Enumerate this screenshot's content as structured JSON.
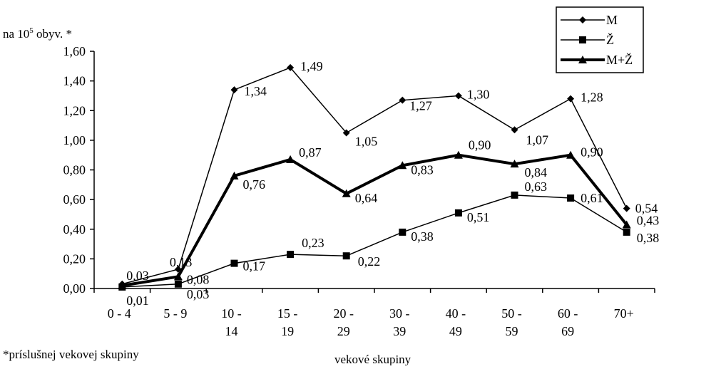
{
  "chart_data": {
    "type": "line",
    "title": "",
    "ylabel_prefix": "na 10",
    "ylabel_sup": "5",
    "ylabel_suffix": " obyv. *",
    "xlabel": "vekové skupiny",
    "footnote": "*príslušnej vekovej skupiny",
    "ylim": [
      0,
      1.6
    ],
    "ytick_step": 0.2,
    "yticks": [
      "0,00",
      "0,20",
      "0,40",
      "0,60",
      "0,80",
      "1,00",
      "1,20",
      "1,40",
      "1,60"
    ],
    "categories": [
      [
        "0 - 4"
      ],
      [
        "5 - 9"
      ],
      [
        "10 -",
        "14"
      ],
      [
        "15 -",
        "19"
      ],
      [
        "20 -",
        "29"
      ],
      [
        "30 -",
        "39"
      ],
      [
        "40 -",
        "49"
      ],
      [
        "50 -",
        "59"
      ],
      [
        "60 -",
        "69"
      ],
      [
        "70+"
      ]
    ],
    "legend_position": "top-right",
    "grid": false,
    "series": [
      {
        "name": "M",
        "marker": "diamond",
        "values": [
          0.03,
          0.13,
          1.34,
          1.49,
          1.05,
          1.27,
          1.3,
          1.07,
          1.28,
          0.54
        ],
        "labels": [
          "0,03",
          "0,13",
          "1,34",
          "1,49",
          "1,05",
          "1,27",
          "1,30",
          "1,07",
          "1,28",
          "0,54"
        ]
      },
      {
        "name": "Ž",
        "marker": "square",
        "values": [
          0.01,
          0.03,
          0.17,
          0.23,
          0.22,
          0.38,
          0.51,
          0.63,
          0.61,
          0.38
        ],
        "labels": [
          "0,01",
          "0,03",
          "0,17",
          "0,23",
          "0,22",
          "0,38",
          "0,51",
          "0,63",
          "0,61",
          "0,38"
        ]
      },
      {
        "name": "M+Ž",
        "marker": "triangle",
        "values": [
          0.02,
          0.08,
          0.76,
          0.87,
          0.64,
          0.83,
          0.9,
          0.84,
          0.9,
          0.43
        ],
        "labels": [
          "",
          "0,08",
          "0,76",
          "0,87",
          "0,64",
          "0,83",
          "0,90",
          "0,84",
          "0,90",
          "0,43"
        ]
      }
    ]
  }
}
